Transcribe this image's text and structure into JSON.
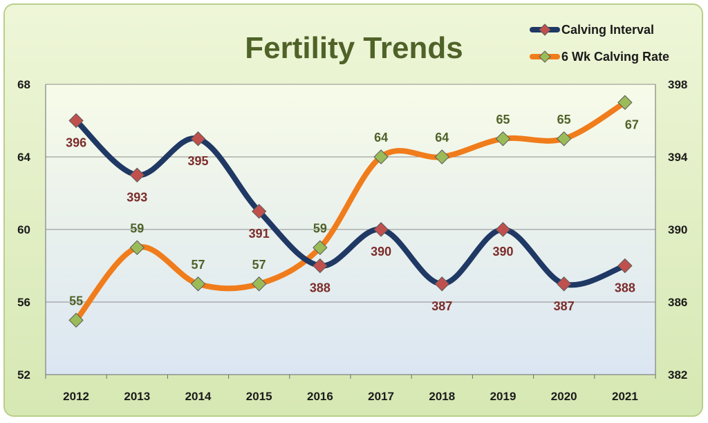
{
  "chart_data": {
    "type": "line",
    "title": "Fertility Trends",
    "categories": [
      "2012",
      "2013",
      "2014",
      "2015",
      "2016",
      "2017",
      "2018",
      "2019",
      "2020",
      "2021"
    ],
    "series": [
      {
        "name": "Calving Interval",
        "axis": "right",
        "values": [
          396,
          393,
          395,
          391,
          388,
          390,
          387,
          390,
          387,
          388
        ],
        "line_color": "#1f3864",
        "marker_color": "#c0504d",
        "label_color": "#7b2c2a"
      },
      {
        "name": "6 Wk Calving Rate",
        "axis": "left",
        "values": [
          55,
          59,
          57,
          57,
          59,
          64,
          64,
          65,
          65,
          67
        ],
        "line_color": "#f07c1b",
        "marker_color": "#9bbb59",
        "label_color": "#4f6228"
      }
    ],
    "y_left": {
      "min": 52,
      "max": 68,
      "ticks": [
        "52",
        "56",
        "60",
        "64",
        "68"
      ]
    },
    "y_right": {
      "min": 382,
      "max": 398,
      "ticks": [
        "382",
        "386",
        "390",
        "394",
        "398"
      ]
    },
    "grid": true,
    "legend_position": "top-right",
    "colors": {
      "title": "#4f6228",
      "frame": "#c3d69b",
      "background_top": "#f4fae6",
      "background_bottom": "#dde8f3"
    }
  }
}
